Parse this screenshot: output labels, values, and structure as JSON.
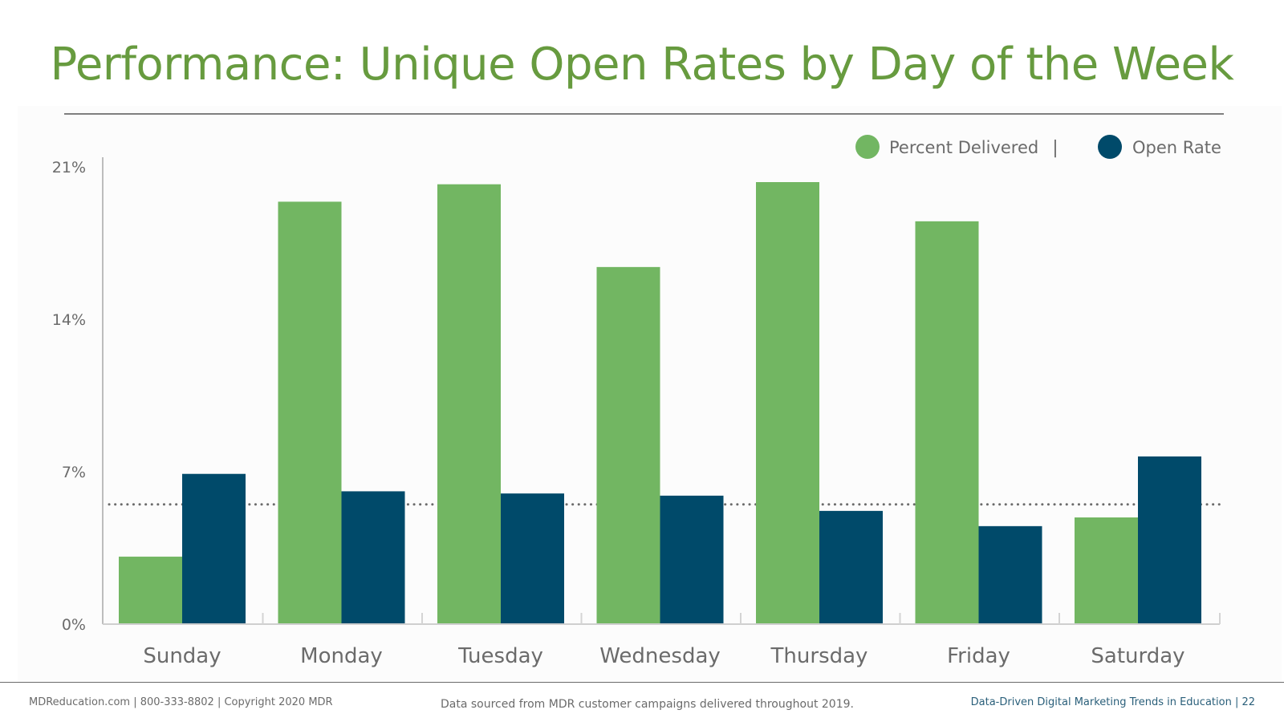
{
  "title": "Performance: Unique Open Rates by Day of the Week",
  "footer": {
    "left": "MDReducation.com  |  800-333-8802  |  Copyright 2020 MDR",
    "center": "Data sourced from MDR customer campaigns delivered throughout 2019.",
    "right": "Data-Driven Digital Marketing Trends in Education  |  22"
  },
  "legend": {
    "separator": "|"
  },
  "colors": {
    "title": "#679b3f",
    "percent_delivered": "#72b662",
    "open_rate": "#004a6a",
    "axis_text": "#6b6b6b",
    "reference_line": "#6b6b6b"
  },
  "chart_data": {
    "type": "bar",
    "title": "",
    "xlabel": "",
    "ylabel": "",
    "categories": [
      "Sunday",
      "Monday",
      "Tuesday",
      "Wednesday",
      "Thursday",
      "Friday",
      "Saturday"
    ],
    "series": [
      {
        "name": "Percent Delivered",
        "values": [
          3.1,
          19.4,
          20.2,
          16.4,
          20.3,
          18.5,
          4.9
        ]
      },
      {
        "name": "Open Rate",
        "values": [
          6.9,
          6.1,
          6.0,
          5.9,
          5.2,
          4.5,
          7.7
        ]
      }
    ],
    "ylim": [
      0,
      21
    ],
    "yticks": [
      0,
      7,
      14,
      21
    ],
    "ytick_labels": [
      "0%",
      "7%",
      "14%",
      "21%"
    ],
    "reference_line": 5.5,
    "legend_position": "top-right",
    "grid": false
  }
}
